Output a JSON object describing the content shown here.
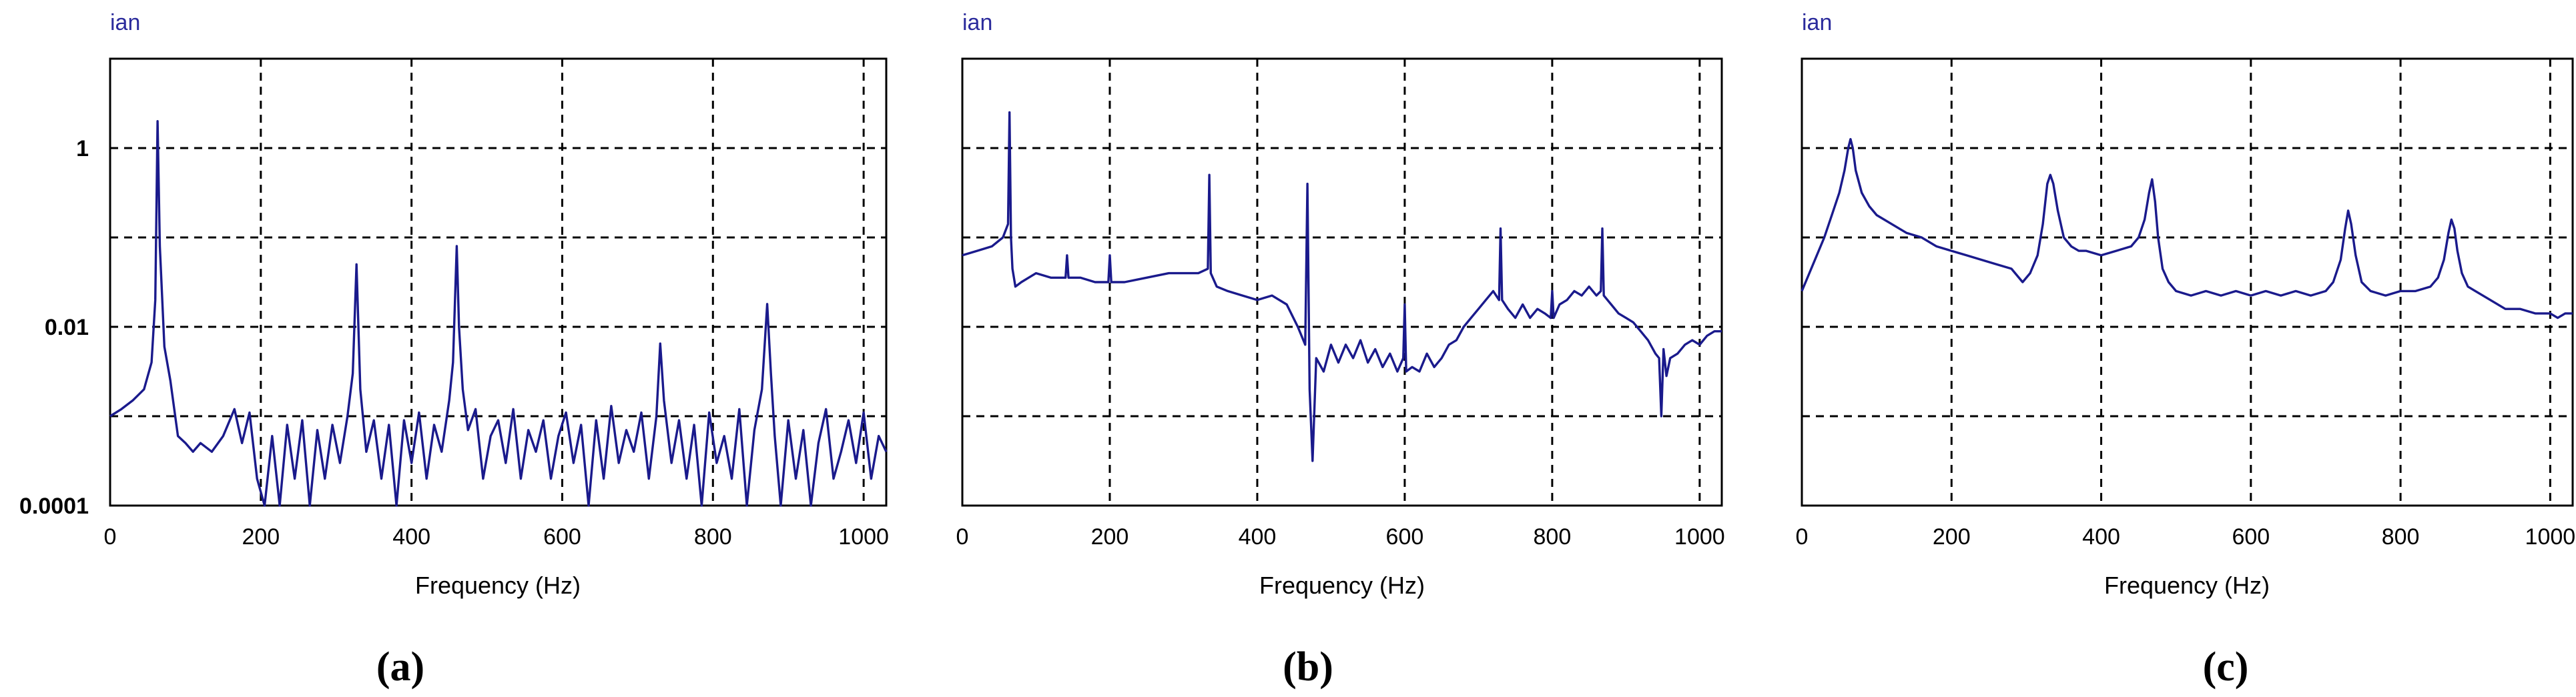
{
  "chart_data": [
    {
      "type": "line",
      "caption": "(a)",
      "ylabel": "ian",
      "xlabel": "Frequency (Hz)",
      "xlim": [
        0,
        1030
      ],
      "ylim": [
        0.0001,
        10
      ],
      "yscale": "log",
      "xticks": [
        0,
        200,
        400,
        600,
        800,
        1000
      ],
      "yticks": [
        0.0001,
        0.01,
        1
      ],
      "ytick_labels": [
        "0.0001",
        "0.01",
        "1"
      ],
      "grid": true,
      "series": [
        {
          "color": "#1a1a8c",
          "x": [
            0,
            15,
            30,
            45,
            55,
            60,
            63,
            66,
            72,
            80,
            90,
            100,
            110,
            120,
            135,
            150,
            165,
            175,
            185,
            195,
            205,
            215,
            225,
            235,
            245,
            255,
            265,
            275,
            285,
            295,
            305,
            315,
            322,
            327,
            332,
            340,
            350,
            360,
            370,
            380,
            390,
            400,
            410,
            420,
            430,
            440,
            450,
            455,
            460,
            463,
            468,
            475,
            485,
            495,
            505,
            515,
            525,
            535,
            545,
            555,
            565,
            575,
            585,
            595,
            605,
            615,
            625,
            635,
            645,
            655,
            665,
            675,
            685,
            695,
            705,
            715,
            725,
            730,
            735,
            745,
            755,
            765,
            775,
            785,
            795,
            805,
            815,
            825,
            835,
            845,
            855,
            865,
            872,
            877,
            882,
            890,
            900,
            910,
            920,
            930,
            940,
            950,
            960,
            970,
            980,
            990,
            1000,
            1010,
            1020,
            1030
          ],
          "y": [
            0.001,
            0.0012,
            0.0015,
            0.002,
            0.004,
            0.02,
            2.0,
            0.08,
            0.006,
            0.0025,
            0.0006,
            0.0005,
            0.0004,
            0.0005,
            0.0004,
            0.0006,
            0.0012,
            0.0005,
            0.0011,
            0.0002,
            0.0001,
            0.0006,
            0.0001,
            0.0008,
            0.0002,
            0.0009,
            0.0001,
            0.0007,
            0.0002,
            0.0008,
            0.0003,
            0.001,
            0.003,
            0.05,
            0.002,
            0.0004,
            0.0009,
            0.0002,
            0.0008,
            0.0001,
            0.0009,
            0.0003,
            0.0011,
            0.0002,
            0.0008,
            0.0004,
            0.0015,
            0.004,
            0.08,
            0.01,
            0.002,
            0.0007,
            0.0012,
            0.0002,
            0.0006,
            0.0009,
            0.0003,
            0.0012,
            0.0002,
            0.0007,
            0.0004,
            0.0009,
            0.0002,
            0.0006,
            0.0011,
            0.0003,
            0.0008,
            0.0001,
            0.0009,
            0.0002,
            0.0013,
            0.0003,
            0.0007,
            0.0004,
            0.0011,
            0.0002,
            0.001,
            0.0065,
            0.0015,
            0.0003,
            0.0009,
            0.0002,
            0.0008,
            0.0001,
            0.0011,
            0.0003,
            0.0006,
            0.0002,
            0.0012,
            0.0001,
            0.0007,
            0.002,
            0.018,
            0.003,
            0.0006,
            0.0001,
            0.0009,
            0.0002,
            0.0007,
            0.0001,
            0.0005,
            0.0012,
            0.0002,
            0.0004,
            0.0009,
            0.0003,
            0.0011,
            0.0002,
            0.0006,
            0.0004
          ]
        }
      ]
    },
    {
      "type": "line",
      "caption": "(b)",
      "ylabel": "ian",
      "xlabel": "Frequency (Hz)",
      "xlim": [
        0,
        1030
      ],
      "ylim": [
        0,
        1
      ],
      "xticks": [
        0,
        200,
        400,
        600,
        800,
        1000
      ],
      "grid": true,
      "series": [
        {
          "color": "#1a1a8c",
          "x": [
            0,
            20,
            40,
            55,
            62,
            64,
            66,
            68,
            72,
            80,
            90,
            100,
            120,
            140,
            142,
            144,
            160,
            180,
            198,
            200,
            202,
            220,
            250,
            280,
            300,
            320,
            333,
            335,
            337,
            345,
            360,
            380,
            400,
            420,
            440,
            455,
            465,
            468,
            471,
            475,
            480,
            490,
            500,
            510,
            520,
            530,
            540,
            550,
            560,
            570,
            580,
            590,
            598,
            600,
            602,
            610,
            620,
            630,
            640,
            650,
            660,
            670,
            680,
            690,
            700,
            710,
            720,
            728,
            730,
            732,
            740,
            750,
            760,
            770,
            780,
            790,
            798,
            800,
            802,
            810,
            820,
            830,
            840,
            850,
            860,
            866,
            868,
            870,
            880,
            890,
            900,
            910,
            920,
            930,
            940,
            945,
            948,
            951,
            955,
            960,
            970,
            980,
            990,
            1000,
            1010,
            1020,
            1030
          ],
          "y": [
            0.56,
            0.57,
            0.58,
            0.6,
            0.63,
            0.88,
            0.6,
            0.53,
            0.49,
            0.5,
            0.51,
            0.52,
            0.51,
            0.51,
            0.56,
            0.51,
            0.51,
            0.5,
            0.5,
            0.56,
            0.5,
            0.5,
            0.51,
            0.52,
            0.52,
            0.52,
            0.53,
            0.74,
            0.52,
            0.49,
            0.48,
            0.47,
            0.46,
            0.47,
            0.45,
            0.4,
            0.36,
            0.72,
            0.26,
            0.1,
            0.33,
            0.3,
            0.36,
            0.32,
            0.36,
            0.33,
            0.37,
            0.32,
            0.35,
            0.31,
            0.34,
            0.3,
            0.33,
            0.45,
            0.3,
            0.31,
            0.3,
            0.34,
            0.31,
            0.33,
            0.36,
            0.37,
            0.4,
            0.42,
            0.44,
            0.46,
            0.48,
            0.46,
            0.62,
            0.46,
            0.44,
            0.42,
            0.45,
            0.42,
            0.44,
            0.43,
            0.42,
            0.48,
            0.42,
            0.45,
            0.46,
            0.48,
            0.47,
            0.49,
            0.47,
            0.48,
            0.62,
            0.47,
            0.45,
            0.43,
            0.42,
            0.41,
            0.39,
            0.37,
            0.34,
            0.33,
            0.2,
            0.35,
            0.29,
            0.33,
            0.34,
            0.36,
            0.37,
            0.36,
            0.38,
            0.39,
            0.39
          ]
        }
      ]
    },
    {
      "type": "line",
      "caption": "(c)",
      "ylabel": "ian",
      "xlabel": "Frequency (Hz)",
      "xlim": [
        0,
        1030
      ],
      "ylim": [
        0,
        1
      ],
      "xticks": [
        0,
        200,
        400,
        600,
        800,
        1000
      ],
      "grid": true,
      "series": [
        {
          "color": "#1a1a8c",
          "x": [
            0,
            10,
            20,
            30,
            40,
            50,
            57,
            62,
            65,
            68,
            72,
            80,
            90,
            100,
            120,
            140,
            160,
            180,
            200,
            220,
            240,
            260,
            280,
            295,
            305,
            315,
            322,
            328,
            332,
            336,
            342,
            350,
            360,
            370,
            380,
            400,
            420,
            440,
            450,
            458,
            464,
            468,
            472,
            476,
            482,
            490,
            500,
            520,
            540,
            560,
            580,
            600,
            620,
            640,
            660,
            680,
            700,
            710,
            720,
            726,
            730,
            734,
            740,
            748,
            760,
            780,
            800,
            820,
            840,
            850,
            858,
            864,
            868,
            872,
            876,
            882,
            890,
            900,
            920,
            940,
            960,
            980,
            1000,
            1010,
            1020,
            1030
          ],
          "y": [
            0.48,
            0.52,
            0.56,
            0.6,
            0.65,
            0.7,
            0.75,
            0.8,
            0.82,
            0.8,
            0.75,
            0.7,
            0.67,
            0.65,
            0.63,
            0.61,
            0.6,
            0.58,
            0.57,
            0.56,
            0.55,
            0.54,
            0.53,
            0.5,
            0.52,
            0.56,
            0.63,
            0.72,
            0.74,
            0.72,
            0.66,
            0.6,
            0.58,
            0.57,
            0.57,
            0.56,
            0.57,
            0.58,
            0.6,
            0.64,
            0.7,
            0.73,
            0.68,
            0.6,
            0.53,
            0.5,
            0.48,
            0.47,
            0.48,
            0.47,
            0.48,
            0.47,
            0.48,
            0.47,
            0.48,
            0.47,
            0.48,
            0.5,
            0.55,
            0.62,
            0.66,
            0.63,
            0.56,
            0.5,
            0.48,
            0.47,
            0.48,
            0.48,
            0.49,
            0.51,
            0.55,
            0.61,
            0.64,
            0.62,
            0.57,
            0.52,
            0.49,
            0.48,
            0.46,
            0.44,
            0.44,
            0.43,
            0.43,
            0.42,
            0.43,
            0.43
          ]
        }
      ]
    }
  ]
}
